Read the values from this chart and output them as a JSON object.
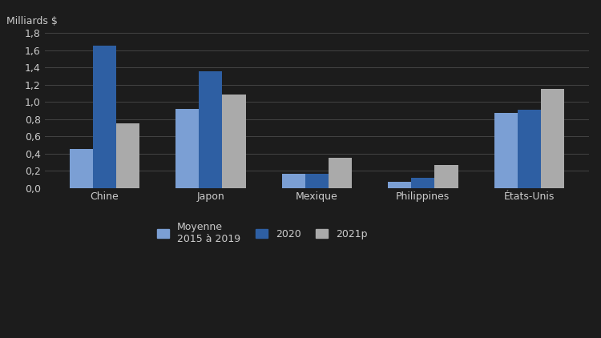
{
  "categories": [
    "Chine",
    "Japon",
    "Mexique",
    "Philippines",
    "États-Unis"
  ],
  "series": {
    "Moyenne\n2015 à 2019": [
      0.45,
      0.92,
      0.16,
      0.07,
      0.87
    ],
    "2020": [
      1.65,
      1.35,
      0.16,
      0.12,
      0.91
    ],
    "2021p": [
      0.75,
      1.08,
      0.35,
      0.27,
      1.15
    ]
  },
  "colors": {
    "Moyenne\n2015 à 2019": "#7b9fd4",
    "2020": "#2e5fa3",
    "2021p": "#aaaaaa"
  },
  "ylabel": "Milliards $",
  "ylim": [
    0,
    1.8
  ],
  "yticks": [
    0.0,
    0.2,
    0.4,
    0.6,
    0.8,
    1.0,
    1.2,
    1.4,
    1.6,
    1.8
  ],
  "ytick_labels": [
    "0,0",
    "0,2",
    "0,4",
    "0,6",
    "0,8",
    "1,0",
    "1,2",
    "1,4",
    "1,6",
    "1,8"
  ],
  "legend_labels": [
    "Moyenne\n2015 à 2019",
    "2020",
    "2021p"
  ],
  "background_color": "#1c1c1c",
  "text_color": "#cccccc",
  "grid_color": "#444444",
  "bar_width": 0.22
}
